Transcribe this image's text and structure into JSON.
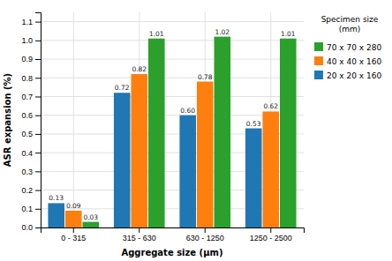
{
  "chart_data": {
    "type": "bar",
    "categories": [
      "0 - 315",
      "315 - 630",
      "630 - 1250",
      "1250 - 2500"
    ],
    "series": [
      {
        "name": "20 x 20 x 160",
        "values": [
          0.13,
          0.72,
          0.6,
          0.53
        ],
        "value_labels": [
          "0.13",
          "0.72",
          "0.60",
          "0.53"
        ]
      },
      {
        "name": "40 x 40 x 160",
        "values": [
          0.09,
          0.82,
          0.78,
          0.62
        ],
        "value_labels": [
          "0.09",
          "0.82",
          "0.78",
          "0.62"
        ]
      },
      {
        "name": "70 x 70 x 280",
        "values": [
          0.03,
          1.01,
          1.02,
          1.01
        ],
        "value_labels": [
          "0.03",
          "1.01",
          "1.02",
          "1.01"
        ]
      }
    ],
    "xlabel": "Aggregate size (μm)",
    "ylabel": "ASR expansion (%)",
    "legend_title": "Specimen size\n(mm)",
    "ylim": [
      0,
      1.15
    ],
    "yticks": [
      {
        "value": 0.0,
        "label": "0.0"
      },
      0.1,
      0.2,
      0.3,
      0.4,
      0.5,
      0.6,
      0.7,
      0.8,
      0.9,
      {
        "value": 1.0,
        "label": "1.0"
      },
      1.1
    ],
    "grid": true,
    "legend": "right",
    "data_labels": true
  }
}
